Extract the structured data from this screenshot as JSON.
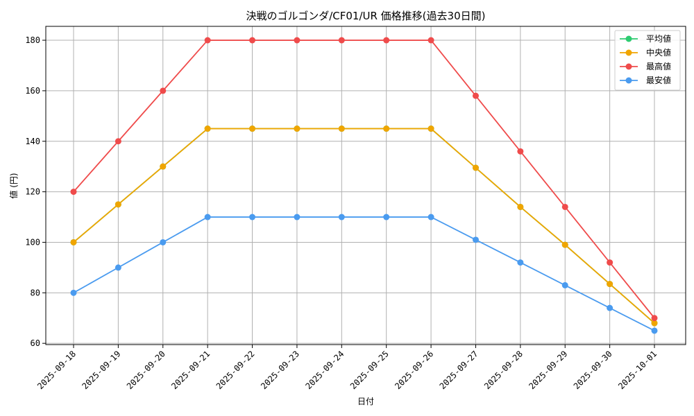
{
  "chart_data": {
    "type": "line",
    "title": "決戦のゴルゴンダ/CF01/UR 価格推移(過去30日間)",
    "xlabel": "日付",
    "ylabel": "値 (円)",
    "categories": [
      "2025-09-18",
      "2025-09-19",
      "2025-09-20",
      "2025-09-21",
      "2025-09-22",
      "2025-09-23",
      "2025-09-24",
      "2025-09-25",
      "2025-09-26",
      "2025-09-27",
      "2025-09-28",
      "2025-09-29",
      "2025-09-30",
      "2025-10-01"
    ],
    "ylim": [
      59.5,
      185.5
    ],
    "yticks": [
      60,
      80,
      100,
      120,
      140,
      160,
      180
    ],
    "grid": true,
    "legend_position": "top-right",
    "series": [
      {
        "name": "平均値",
        "color": "#2ecc71",
        "values": [
          100,
          115,
          130,
          145,
          145,
          145,
          145,
          145,
          145,
          129.5,
          114,
          99,
          83.5,
          68
        ]
      },
      {
        "name": "中央値",
        "color": "#f0a500",
        "values": [
          100,
          115,
          130,
          145,
          145,
          145,
          145,
          145,
          145,
          129.5,
          114,
          99,
          83.5,
          68
        ]
      },
      {
        "name": "最高値",
        "color": "#ef4b4b",
        "values": [
          120,
          140,
          160,
          180,
          180,
          180,
          180,
          180,
          180,
          158,
          136,
          114,
          92,
          70
        ]
      },
      {
        "name": "最安値",
        "color": "#4a9bef",
        "values": [
          80,
          90,
          100,
          110,
          110,
          110,
          110,
          110,
          110,
          101,
          92,
          83,
          74,
          65
        ]
      }
    ]
  }
}
